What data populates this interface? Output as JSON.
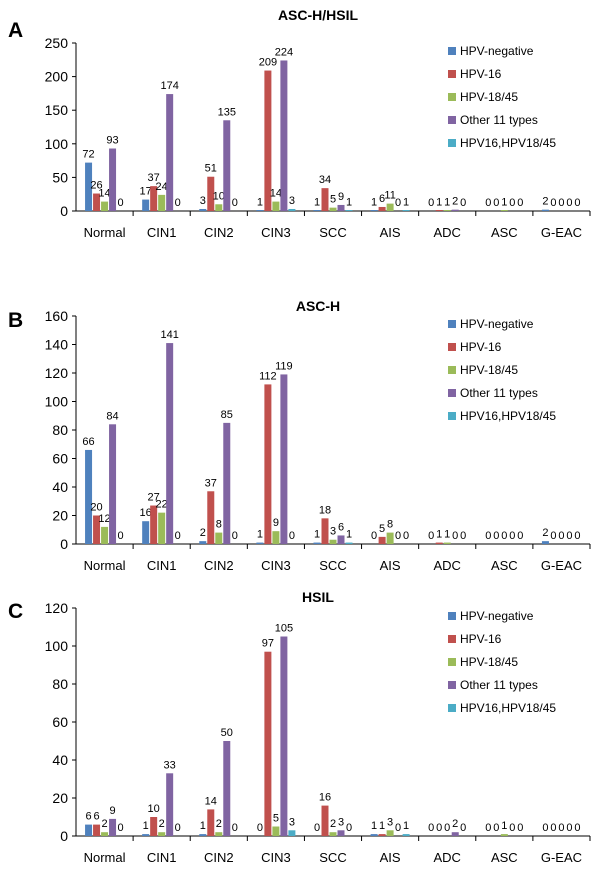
{
  "chart_data": [
    {
      "type": "bar",
      "panel_label": "A",
      "title": "ASC-H/HSIL",
      "categories": [
        "Normal",
        "CIN1",
        "CIN2",
        "CIN3",
        "SCC",
        "AIS",
        "ADC",
        "ASC",
        "G-EAC"
      ],
      "ylim": [
        0,
        250
      ],
      "yticks": [
        0,
        50,
        100,
        150,
        200,
        250
      ],
      "legend": "top-right",
      "grid": false,
      "series": [
        {
          "name": "HPV-negative",
          "color": "#4F81BD",
          "values": [
            72,
            17,
            3,
            1,
            1,
            1,
            0,
            0,
            2
          ]
        },
        {
          "name": "HPV-16",
          "color": "#C0504D",
          "values": [
            26,
            37,
            51,
            209,
            34,
            6,
            1,
            0,
            0
          ]
        },
        {
          "name": "HPV-18/45",
          "color": "#9BBB59",
          "values": [
            14,
            24,
            10,
            14,
            5,
            11,
            1,
            1,
            0
          ]
        },
        {
          "name": "Other 11 types",
          "color": "#8064A2",
          "values": [
            93,
            174,
            135,
            224,
            9,
            0,
            2,
            0,
            0
          ]
        },
        {
          "name": "HPV16,HPV18/45",
          "color": "#4BACC6",
          "values": [
            0,
            0,
            0,
            3,
            1,
            1,
            0,
            0,
            0
          ]
        }
      ]
    },
    {
      "type": "bar",
      "panel_label": "B",
      "title": "ASC-H",
      "categories": [
        "Normal",
        "CIN1",
        "CIN2",
        "CIN3",
        "SCC",
        "AIS",
        "ADC",
        "ASC",
        "G-EAC"
      ],
      "ylim": [
        0,
        160
      ],
      "yticks": [
        0,
        20,
        40,
        60,
        80,
        100,
        120,
        140,
        160
      ],
      "legend": "top-right",
      "grid": false,
      "series": [
        {
          "name": "HPV-negative",
          "color": "#4F81BD",
          "values": [
            66,
            16,
            2,
            1,
            1,
            0,
            0,
            0,
            2
          ]
        },
        {
          "name": "HPV-16",
          "color": "#C0504D",
          "values": [
            20,
            27,
            37,
            112,
            18,
            5,
            1,
            0,
            0
          ]
        },
        {
          "name": "HPV-18/45",
          "color": "#9BBB59",
          "values": [
            12,
            22,
            8,
            9,
            3,
            8,
            1,
            0,
            0
          ]
        },
        {
          "name": "Other 11 types",
          "color": "#8064A2",
          "values": [
            84,
            141,
            85,
            119,
            6,
            0,
            0,
            0,
            0
          ]
        },
        {
          "name": "HPV16,HPV18/45",
          "color": "#4BACC6",
          "values": [
            0,
            0,
            0,
            0,
            1,
            0,
            0,
            0,
            0
          ]
        }
      ]
    },
    {
      "type": "bar",
      "panel_label": "C",
      "title": "HSIL",
      "categories": [
        "Normal",
        "CIN1",
        "CIN2",
        "CIN3",
        "SCC",
        "AIS",
        "ADC",
        "ASC",
        "G-EAC"
      ],
      "ylim": [
        0,
        120
      ],
      "yticks": [
        0,
        20,
        40,
        60,
        80,
        100,
        120
      ],
      "legend": "top-right",
      "grid": false,
      "series": [
        {
          "name": "HPV-negative",
          "color": "#4F81BD",
          "values": [
            6,
            1,
            1,
            0,
            0,
            1,
            0,
            0,
            0
          ]
        },
        {
          "name": "HPV-16",
          "color": "#C0504D",
          "values": [
            6,
            10,
            14,
            97,
            16,
            1,
            0,
            0,
            0
          ]
        },
        {
          "name": "HPV-18/45",
          "color": "#9BBB59",
          "values": [
            2,
            2,
            2,
            5,
            2,
            3,
            0,
            1,
            0
          ]
        },
        {
          "name": "Other 11 types",
          "color": "#8064A2",
          "values": [
            9,
            33,
            50,
            105,
            3,
            0,
            2,
            0,
            0
          ]
        },
        {
          "name": "HPV16,HPV18/45",
          "color": "#4BACC6",
          "values": [
            0,
            0,
            0,
            3,
            0,
            1,
            0,
            0,
            0
          ]
        }
      ]
    }
  ]
}
